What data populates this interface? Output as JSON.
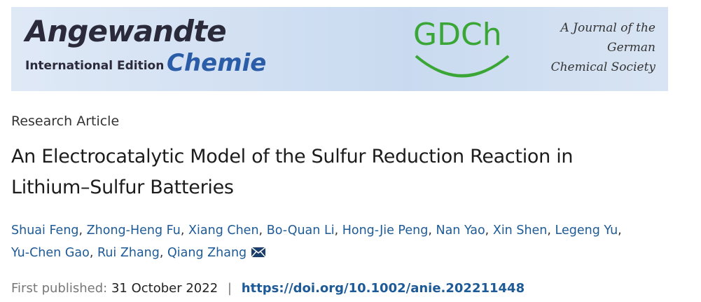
{
  "banner": {
    "journal": "Angewandte",
    "edition": "International Edition",
    "subtitle": "Chemie",
    "society_logo": "GDCh",
    "tagline": [
      "A Journal of the",
      "German",
      "Chemical Society"
    ]
  },
  "article": {
    "type": "Research Article",
    "title_lines": [
      "An Electrocatalytic Model of the Sulfur Reduction Reaction in",
      "Lithium–Sulfur Batteries"
    ],
    "author_separator": ",",
    "authors": [
      [
        "Shuai Feng",
        "Zhong-Heng Fu",
        "Xiang Chen",
        "Bo-Quan Li",
        "Hong-Jie Peng",
        "Nan Yao",
        "Xin Shen",
        "Legeng Yu"
      ],
      [
        "Yu-Chen Gao",
        "Rui Zhang",
        "Qiang Zhang"
      ]
    ],
    "published_label": "First published:",
    "published_date": "31 October 2022",
    "divider": "|",
    "doi": "https://doi.org/10.1002/anie.202211448"
  }
}
